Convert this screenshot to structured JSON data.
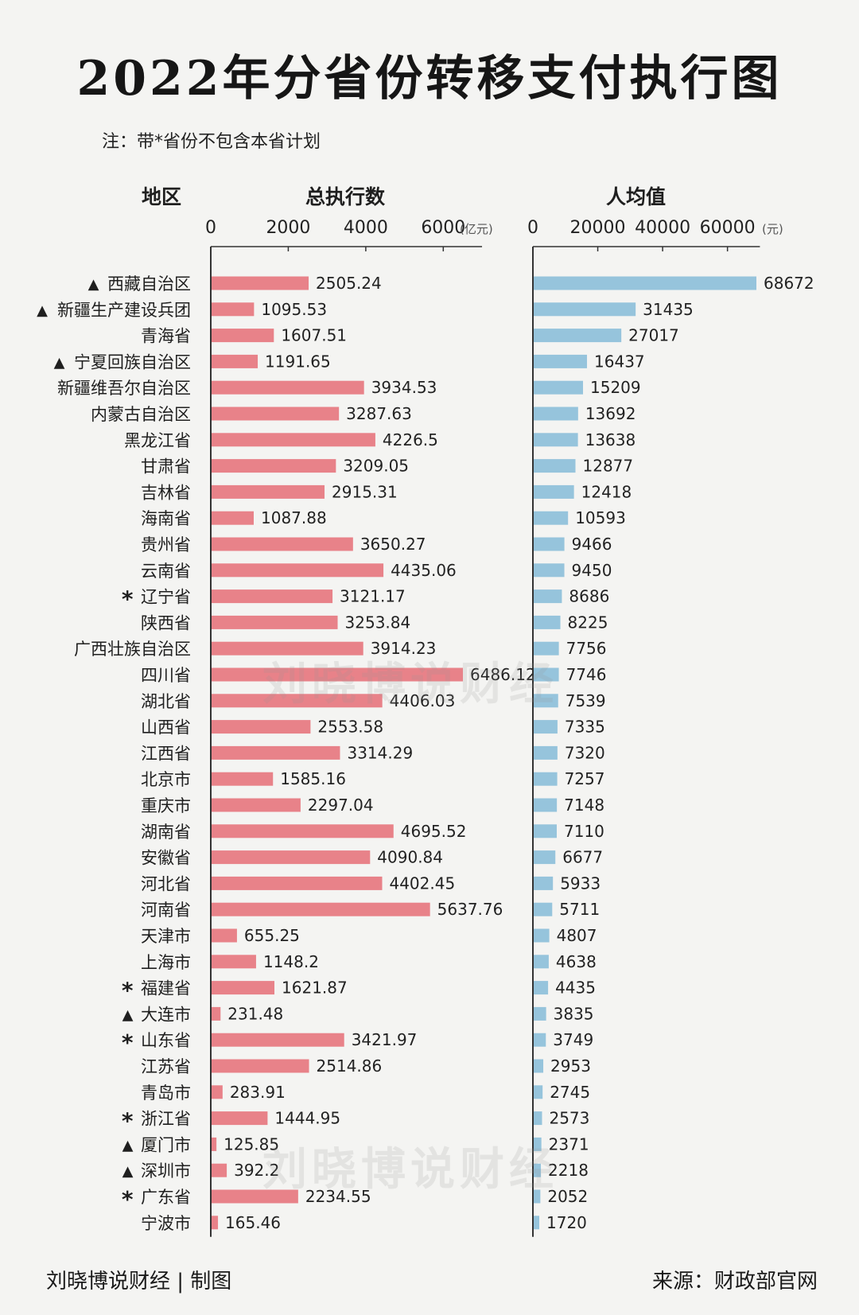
{
  "title": "2022年分省份转移支付执行图",
  "note": "注：带*省份不包含本省计划",
  "headers": {
    "region": "地区",
    "total": "总执行数",
    "per_capita": "人均值"
  },
  "watermark": "刘晓博说财经",
  "footer": {
    "left": "刘晓博说财经 | 制图",
    "right": "来源：财政部官网"
  },
  "colors": {
    "total_bar": "#e88289",
    "per_capita_bar": "#96c4dc",
    "axis": "#333333"
  },
  "chart_data": {
    "type": "bar",
    "orientation": "horizontal",
    "categories": [
      "西藏自治区",
      "新疆生产建设兵团",
      "青海省",
      "宁夏回族自治区",
      "新疆维吾尔自治区",
      "内蒙古自治区",
      "黑龙江省",
      "甘肃省",
      "吉林省",
      "海南省",
      "贵州省",
      "云南省",
      "辽宁省",
      "陕西省",
      "广西壮族自治区",
      "四川省",
      "湖北省",
      "山西省",
      "江西省",
      "北京市",
      "重庆市",
      "湖南省",
      "安徽省",
      "河北省",
      "河南省",
      "天津市",
      "上海市",
      "福建省",
      "大连市",
      "山东省",
      "江苏省",
      "青岛市",
      "浙江省",
      "厦门市",
      "深圳市",
      "广东省",
      "宁波市"
    ],
    "markers": [
      "▲",
      "▲",
      "",
      "▲",
      "",
      "",
      "",
      "",
      "",
      "",
      "",
      "",
      "*",
      "",
      "",
      "",
      "",
      "",
      "",
      "",
      "",
      "",
      "",
      "",
      "",
      "",
      "",
      "*",
      "▲",
      "*",
      "",
      "",
      "*",
      "▲",
      "▲",
      "*",
      ""
    ],
    "series": [
      {
        "name": "总执行数",
        "unit": "(亿元)",
        "ticks": [
          0,
          2000,
          4000,
          6000
        ],
        "xlim": [
          0,
          7000
        ],
        "values": [
          2505.24,
          1095.53,
          1607.51,
          1191.65,
          3934.53,
          3287.63,
          4226.5,
          3209.05,
          2915.31,
          1087.88,
          3650.27,
          4435.06,
          3121.17,
          3253.84,
          3914.23,
          6486.12,
          4406.03,
          2553.58,
          3314.29,
          1585.16,
          2297.04,
          4695.52,
          4090.84,
          4402.45,
          5637.76,
          655.25,
          1148.2,
          1621.87,
          231.48,
          3421.97,
          2514.86,
          283.91,
          1444.95,
          125.85,
          392.2,
          2234.55,
          165.46
        ],
        "labels": [
          "2505.24",
          "1095.53",
          "1607.51",
          "1191.65",
          "3934.53",
          "3287.63",
          "4226.5",
          "3209.05",
          "2915.31",
          "1087.88",
          "3650.27",
          "4435.06",
          "3121.17",
          "3253.84",
          "3914.23",
          "6486.12",
          "4406.03",
          "2553.58",
          "3314.29",
          "1585.16",
          "2297.04",
          "4695.52",
          "4090.84",
          "4402.45",
          "5637.76",
          "655.25",
          "1148.2",
          "1621.87",
          "231.48",
          "3421.97",
          "2514.86",
          "283.91",
          "1444.95",
          "125.85",
          "392.2",
          "2234.55",
          "165.46"
        ]
      },
      {
        "name": "人均值",
        "unit": "(元)",
        "ticks": [
          0,
          20000,
          40000,
          60000
        ],
        "xlim": [
          0,
          70000
        ],
        "values": [
          68672,
          31435,
          27017,
          16437,
          15209,
          13692,
          13638,
          12877,
          12418,
          10593,
          9466,
          9450,
          8686,
          8225,
          7756,
          7746,
          7539,
          7335,
          7320,
          7257,
          7148,
          7110,
          6677,
          5933,
          5711,
          4807,
          4638,
          4435,
          3835,
          3749,
          2953,
          2745,
          2573,
          2371,
          2218,
          2052,
          1720
        ],
        "labels": [
          "68672",
          "31435",
          "27017",
          "16437",
          "15209",
          "13692",
          "13638",
          "12877",
          "12418",
          "10593",
          "9466",
          "9450",
          "8686",
          "8225",
          "7756",
          "7746",
          "7539",
          "7335",
          "7320",
          "7257",
          "7148",
          "7110",
          "6677",
          "5933",
          "5711",
          "4807",
          "4638",
          "4435",
          "3835",
          "3749",
          "2953",
          "2745",
          "2573",
          "2371",
          "2218",
          "2052",
          "1720"
        ]
      }
    ]
  }
}
